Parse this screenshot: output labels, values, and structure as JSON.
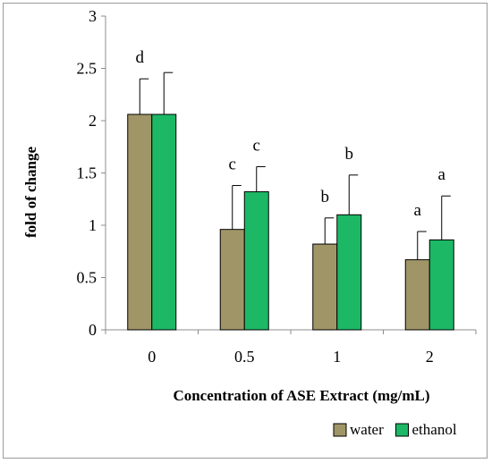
{
  "chart_data": {
    "type": "bar",
    "categories": [
      "0",
      "0.5",
      "1",
      "2"
    ],
    "series": [
      {
        "name": "water",
        "color": "#a09567",
        "values": [
          2.06,
          0.96,
          0.82,
          0.67
        ],
        "errors": [
          0.34,
          0.42,
          0.25,
          0.27
        ],
        "significance": [
          "d",
          "c",
          "b",
          "a"
        ]
      },
      {
        "name": "ethanol",
        "color": "#1cb866",
        "values": [
          2.06,
          1.32,
          1.1,
          0.86
        ],
        "errors": [
          0.4,
          0.24,
          0.38,
          0.42
        ],
        "significance": [
          "",
          "c",
          "b",
          "a"
        ]
      }
    ],
    "xlabel": "Concentration of ASE Extract (mg/mL)",
    "ylabel": "fold of change",
    "ylim": [
      0,
      3
    ],
    "yticks": [
      "0",
      "0.5",
      "1",
      "1.5",
      "2",
      "2.5",
      "3"
    ],
    "grid": false,
    "legend_position": "bottom-right"
  }
}
